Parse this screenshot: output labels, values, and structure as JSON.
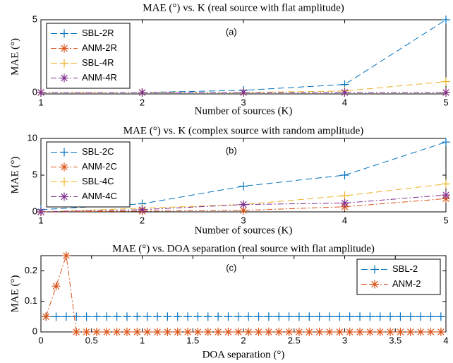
{
  "chart_data": [
    {
      "type": "line",
      "title": "MAE (°) vs. K (real source with flat amplitude)",
      "annotation": "(a)",
      "xlabel": "Number of sources (K)",
      "ylabel": "MAE (°)",
      "x": [
        1,
        2,
        3,
        4,
        5
      ],
      "xlim": [
        1,
        5
      ],
      "xticks": [
        1,
        2,
        3,
        4,
        5
      ],
      "ylim": [
        -0.1,
        5
      ],
      "yticks": [
        0,
        5
      ],
      "legend": "upper left",
      "series": [
        {
          "name": "SBL-2R",
          "color": "#0072bd",
          "marker": "+",
          "dash": "dashed",
          "values": [
            0,
            0,
            0.15,
            0.55,
            5
          ]
        },
        {
          "name": "ANM-2R",
          "color": "#d95319",
          "marker": "*",
          "dash": "dashdot",
          "values": [
            0,
            0,
            0,
            0,
            0
          ]
        },
        {
          "name": "SBL-4R",
          "color": "#edb120",
          "marker": "+",
          "dash": "dashed",
          "values": [
            0,
            0,
            0,
            0.1,
            0.75
          ]
        },
        {
          "name": "ANM-4R",
          "color": "#7e2f8e",
          "marker": "*",
          "dash": "dashdot",
          "values": [
            0,
            0,
            0,
            0,
            0
          ]
        }
      ]
    },
    {
      "type": "line",
      "title": "MAE (°) vs. K (complex source with random amplitude)",
      "annotation": "(b)",
      "xlabel": "Number of sources (K)",
      "ylabel": "MAE (°)",
      "x": [
        1,
        2,
        3,
        4,
        5
      ],
      "xlim": [
        1,
        5
      ],
      "xticks": [
        1,
        2,
        3,
        4,
        5
      ],
      "ylim": [
        0,
        10
      ],
      "yticks": [
        0,
        5,
        10
      ],
      "legend": "upper left",
      "series": [
        {
          "name": "SBL-2C",
          "color": "#0072bd",
          "marker": "+",
          "dash": "dashed",
          "values": [
            0.3,
            1.1,
            3.5,
            5.0,
            9.5
          ]
        },
        {
          "name": "ANM-2C",
          "color": "#d95319",
          "marker": "*",
          "dash": "dashdot",
          "values": [
            0,
            0.1,
            0.2,
            0.7,
            1.8
          ]
        },
        {
          "name": "SBL-4C",
          "color": "#edb120",
          "marker": "+",
          "dash": "dashed",
          "values": [
            0,
            0.5,
            1.0,
            2.2,
            3.8
          ]
        },
        {
          "name": "ANM-4C",
          "color": "#7e2f8e",
          "marker": "*",
          "dash": "dashdot",
          "values": [
            0,
            0.3,
            1.0,
            1.2,
            2.3
          ]
        }
      ]
    },
    {
      "type": "line",
      "title": "MAE (°) vs. DOA separation (real source with flat amplitude)",
      "annotation": "(c)",
      "xlabel": "DOA separation (°)",
      "ylabel": "MAE (°)",
      "x": [
        0.05,
        0.15,
        0.25,
        0.35,
        0.45,
        0.55,
        0.65,
        0.75,
        0.85,
        0.95,
        1.05,
        1.15,
        1.25,
        1.35,
        1.45,
        1.55,
        1.65,
        1.75,
        1.85,
        1.95,
        2.05,
        2.15,
        2.25,
        2.35,
        2.45,
        2.55,
        2.65,
        2.75,
        2.85,
        2.95,
        3.05,
        3.15,
        3.25,
        3.35,
        3.45,
        3.55,
        3.65,
        3.75,
        3.85,
        3.95
      ],
      "xlim": [
        0,
        4
      ],
      "xticks": [
        0,
        0.5,
        1,
        1.5,
        2,
        2.5,
        3,
        3.5,
        4
      ],
      "ylim": [
        0,
        0.25
      ],
      "yticks": [
        0,
        0.1,
        0.2
      ],
      "legend": "upper right",
      "series": [
        {
          "name": "SBL-2",
          "color": "#0072bd",
          "marker": "+",
          "dash": "dashed",
          "values": [
            0.05,
            0.05,
            0.05,
            0.05,
            0.05,
            0.05,
            0.05,
            0.05,
            0.05,
            0.05,
            0.05,
            0.05,
            0.05,
            0.05,
            0.05,
            0.05,
            0.05,
            0.05,
            0.05,
            0.05,
            0.05,
            0.05,
            0.05,
            0.05,
            0.05,
            0.05,
            0.05,
            0.05,
            0.05,
            0.05,
            0.05,
            0.05,
            0.05,
            0.05,
            0.05,
            0.05,
            0.05,
            0.05,
            0.05,
            0.05
          ]
        },
        {
          "name": "ANM-2",
          "color": "#d95319",
          "marker": "*",
          "dash": "dashdot",
          "values": [
            0.05,
            0.15,
            0.25,
            0,
            0,
            0,
            0,
            0,
            0,
            0,
            0,
            0,
            0,
            0,
            0,
            0,
            0,
            0,
            0,
            0,
            0,
            0,
            0,
            0,
            0,
            0,
            0,
            0,
            0,
            0,
            0,
            0,
            0,
            0,
            0,
            0,
            0,
            0,
            0,
            0
          ]
        }
      ]
    }
  ]
}
